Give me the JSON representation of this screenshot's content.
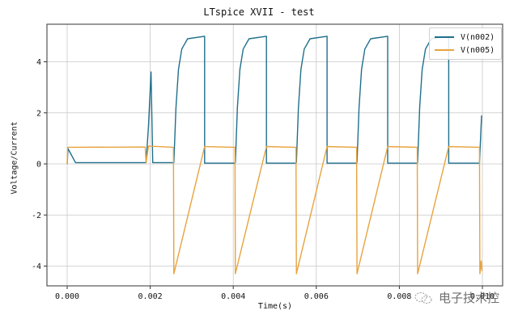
{
  "chart_data": {
    "type": "line",
    "title": "LTspice XVII - test",
    "xlabel": "Time(s)",
    "ylabel": "Voltage/Current",
    "xlim": [
      -0.00055,
      0.01035
    ],
    "ylim": [
      -4.8,
      5.4
    ],
    "xticks": [
      0.0,
      0.002,
      0.004,
      0.006,
      0.008,
      0.01
    ],
    "xtick_labels": [
      "0.000",
      "0.002",
      "0.004",
      "0.006",
      "0.008",
      "0.010"
    ],
    "yticks": [
      -4,
      -2,
      0,
      2,
      4
    ],
    "ytick_labels": [
      "-4",
      "-2",
      "0",
      "2",
      "4"
    ],
    "grid": true,
    "legend_position": "upper right",
    "series": [
      {
        "name": "V(n002)",
        "color": "#1f6f8b",
        "points": [
          [
            0.0,
            0.0
          ],
          [
            2e-05,
            0.6
          ],
          [
            0.0002,
            0.05
          ],
          [
            0.00188,
            0.05
          ],
          [
            0.0019,
            0.05
          ],
          [
            0.00196,
            1.5
          ],
          [
            0.00202,
            3.6
          ],
          [
            0.00206,
            0.05
          ],
          [
            0.00256,
            0.05
          ],
          [
            0.00257,
            0.05
          ],
          [
            0.00262,
            2.2
          ],
          [
            0.00268,
            3.7
          ],
          [
            0.00276,
            4.5
          ],
          [
            0.0029,
            4.9
          ],
          [
            0.00331,
            5.0
          ],
          [
            0.00331,
            0.03
          ],
          [
            0.00404,
            0.03
          ],
          [
            0.00405,
            0.05
          ],
          [
            0.0041,
            2.2
          ],
          [
            0.00416,
            3.7
          ],
          [
            0.00424,
            4.5
          ],
          [
            0.00438,
            4.9
          ],
          [
            0.0048,
            5.0
          ],
          [
            0.0048,
            0.03
          ],
          [
            0.00551,
            0.03
          ],
          [
            0.00552,
            0.05
          ],
          [
            0.00557,
            2.2
          ],
          [
            0.00563,
            3.7
          ],
          [
            0.00571,
            4.5
          ],
          [
            0.00585,
            4.9
          ],
          [
            0.00626,
            5.0
          ],
          [
            0.00626,
            0.03
          ],
          [
            0.00697,
            0.03
          ],
          [
            0.00698,
            0.05
          ],
          [
            0.00703,
            2.2
          ],
          [
            0.00709,
            3.7
          ],
          [
            0.00717,
            4.5
          ],
          [
            0.00731,
            4.9
          ],
          [
            0.00772,
            5.0
          ],
          [
            0.00772,
            0.03
          ],
          [
            0.00843,
            0.03
          ],
          [
            0.00844,
            0.05
          ],
          [
            0.00849,
            2.2
          ],
          [
            0.00855,
            3.7
          ],
          [
            0.00863,
            4.5
          ],
          [
            0.00877,
            4.9
          ],
          [
            0.00919,
            5.0
          ],
          [
            0.00919,
            0.03
          ],
          [
            0.00993,
            0.03
          ],
          [
            0.00998,
            1.9
          ]
        ]
      },
      {
        "name": "V(n005)",
        "color": "#e8a33d",
        "points": [
          [
            0.0,
            0.0
          ],
          [
            1e-05,
            0.65
          ],
          [
            0.00188,
            0.66
          ],
          [
            0.0019,
            0.05
          ],
          [
            0.00196,
            0.7
          ],
          [
            0.00256,
            0.65
          ],
          [
            0.00257,
            -4.3
          ],
          [
            0.00331,
            0.68
          ],
          [
            0.00404,
            0.65
          ],
          [
            0.00405,
            -4.3
          ],
          [
            0.0048,
            0.68
          ],
          [
            0.00551,
            0.65
          ],
          [
            0.00552,
            -4.3
          ],
          [
            0.00626,
            0.68
          ],
          [
            0.00697,
            0.65
          ],
          [
            0.00698,
            -4.3
          ],
          [
            0.00772,
            0.68
          ],
          [
            0.00843,
            0.65
          ],
          [
            0.00844,
            -4.3
          ],
          [
            0.00919,
            0.68
          ],
          [
            0.00993,
            0.65
          ],
          [
            0.00994,
            -4.3
          ],
          [
            0.00997,
            -3.8
          ],
          [
            0.00999,
            -4.2
          ]
        ]
      }
    ]
  },
  "watermark": {
    "text": "电子技术控",
    "icon": "wechat-icon"
  }
}
